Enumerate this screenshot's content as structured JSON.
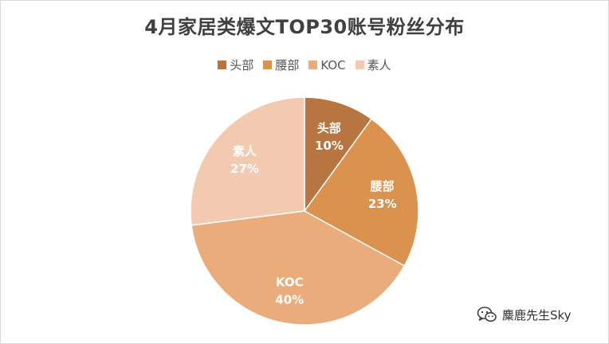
{
  "chart_data": {
    "type": "pie",
    "title": "4月家居类爆文TOP30账号粉丝分布",
    "slices": [
      {
        "label": "头部",
        "value": 10,
        "display": "10%",
        "color": "#b97540"
      },
      {
        "label": "腰部",
        "value": 23,
        "display": "23%",
        "color": "#dc924f"
      },
      {
        "label": "KOC",
        "value": 40,
        "display": "40%",
        "color": "#ebac7b"
      },
      {
        "label": "素人",
        "value": 27,
        "display": "27%",
        "color": "#f3c9af"
      }
    ],
    "legend_placement": "top"
  },
  "watermark": {
    "text": "麋鹿先生Sky",
    "icon": "wechat-icon"
  }
}
